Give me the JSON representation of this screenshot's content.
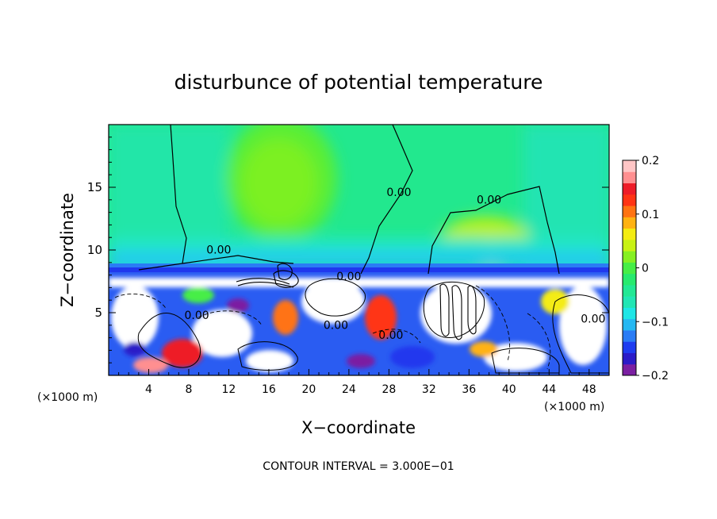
{
  "chart_data": {
    "type": "heatmap",
    "title": "disturbunce of potential temperature",
    "xlabel": "X−coordinate",
    "ylabel": "Z−coordinate",
    "x_unit": "(×1000 m)",
    "y_unit": "(×1000 m)",
    "footer": "CONTOUR INTERVAL = 3.000E−01",
    "xlim": [
      0,
      50
    ],
    "ylim": [
      0,
      20
    ],
    "x_ticks": [
      4,
      8,
      12,
      16,
      20,
      24,
      28,
      32,
      36,
      40,
      44,
      48
    ],
    "y_ticks": [
      5,
      10,
      15
    ],
    "colorbar": {
      "min": -0.2,
      "max": 0.2,
      "tick_values": [
        -0.2,
        -0.1,
        0,
        0.1,
        0.2
      ],
      "tick_labels": [
        "−0.2",
        "−0.1",
        "0",
        "0.1",
        "0.2"
      ],
      "colors": [
        "#7b1fa2",
        "#2b1bc8",
        "#1e3cf0",
        "#2a7cf5",
        "#25b8f2",
        "#1fe6e6",
        "#22e6b4",
        "#22e894",
        "#27ea6e",
        "#46ee46",
        "#86f022",
        "#c8f214",
        "#f4ec12",
        "#ffb212",
        "#ff7312",
        "#ff3414",
        "#ee1c28",
        "#ff8f90",
        "#ffc6c6"
      ]
    },
    "contour_interval": 0.3,
    "contour_labels": [
      {
        "text": "0.00",
        "x": 11.0,
        "y": 9.7
      },
      {
        "text": "0.00",
        "x": 29.0,
        "y": 14.3
      },
      {
        "text": "0.00",
        "x": 38.0,
        "y": 13.7
      },
      {
        "text": "0.00",
        "x": 24.0,
        "y": 7.6
      },
      {
        "text": "0.00",
        "x": 8.8,
        "y": 4.5
      },
      {
        "text": "0.00",
        "x": 48.4,
        "y": 4.2
      },
      {
        "text": "0.00",
        "x": 28.2,
        "y": 2.9
      },
      {
        "text": "0.00",
        "x": 22.7,
        "y": 3.7
      }
    ]
  }
}
